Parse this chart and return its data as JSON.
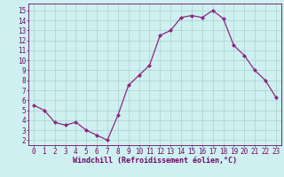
{
  "x": [
    0,
    1,
    2,
    3,
    4,
    5,
    6,
    7,
    8,
    9,
    10,
    11,
    12,
    13,
    14,
    15,
    16,
    17,
    18,
    19,
    20,
    21,
    22,
    23
  ],
  "y": [
    5.5,
    5.0,
    3.8,
    3.5,
    3.8,
    3.0,
    2.5,
    2.0,
    4.5,
    7.5,
    8.5,
    9.5,
    12.5,
    13.0,
    14.3,
    14.5,
    14.3,
    15.0,
    14.2,
    11.5,
    10.5,
    9.0,
    8.0,
    6.3
  ],
  "line_color": "#8b2585",
  "marker": "D",
  "markersize": 2.0,
  "linewidth": 0.9,
  "bg_color": "#cff0f0",
  "grid_color": "#a8d0d0",
  "xlabel": "Windchill (Refroidissement éolien,°C)",
  "xlabel_fontsize": 6.0,
  "ylabel_ticks": [
    2,
    3,
    4,
    5,
    6,
    7,
    8,
    9,
    10,
    11,
    12,
    13,
    14,
    15
  ],
  "xticks": [
    0,
    1,
    2,
    3,
    4,
    5,
    6,
    7,
    8,
    9,
    10,
    11,
    12,
    13,
    14,
    15,
    16,
    17,
    18,
    19,
    20,
    21,
    22,
    23
  ],
  "xlim": [
    -0.5,
    23.5
  ],
  "ylim": [
    1.5,
    15.7
  ],
  "tick_fontsize": 5.5,
  "label_color": "#6a0a6a",
  "spine_color": "#6a0a6a"
}
